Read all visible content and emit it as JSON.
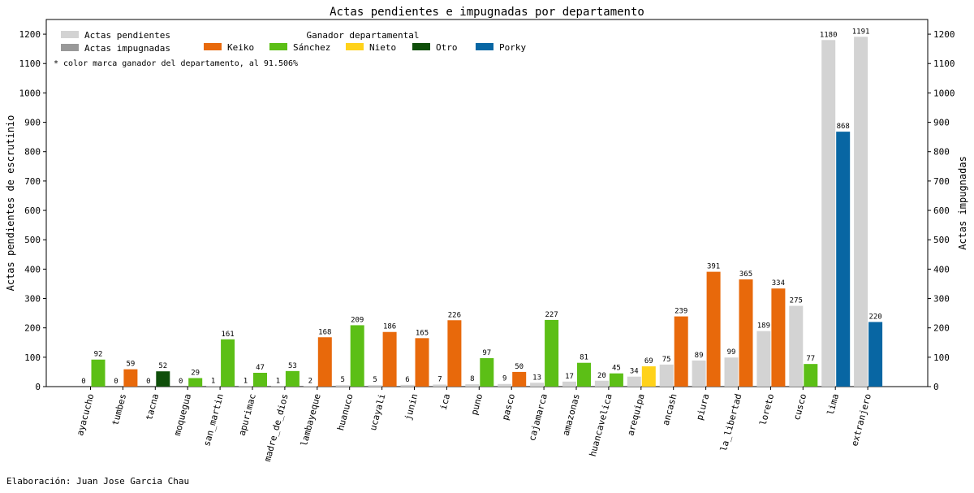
{
  "chart_data": {
    "type": "bar",
    "title": "Actas pendientes e impugnadas por departamento",
    "ylabel": "Actas pendientes de escrutinio",
    "ylabel_right": "Actas impugnadas",
    "ylim": [
      0,
      1250
    ],
    "yticks": [
      0,
      100,
      200,
      300,
      400,
      500,
      600,
      700,
      800,
      900,
      1000,
      1100,
      1200
    ],
    "categories": [
      "ayacucho",
      "tumbes",
      "tacna",
      "moquegua",
      "san_martin",
      "apurimac",
      "madre_de_dios",
      "lambayeque",
      "huanuco",
      "ucayali",
      "junin",
      "ica",
      "puno",
      "pasco",
      "cajamarca",
      "amazonas",
      "huancavelica",
      "arequipa",
      "ancash",
      "piura",
      "la_libertad",
      "loreto",
      "cusco",
      "lima",
      "extranjero"
    ],
    "series": [
      {
        "name": "Actas pendientes",
        "color": "#d3d3d3",
        "values": [
          0,
          0,
          0,
          0,
          1,
          1,
          1,
          2,
          5,
          5,
          6,
          7,
          8,
          9,
          13,
          17,
          20,
          34,
          75,
          89,
          99,
          189,
          275,
          1180,
          1191
        ]
      },
      {
        "name": "Actas impugnadas",
        "color": "#999999",
        "values": [
          92,
          59,
          52,
          29,
          161,
          47,
          53,
          168,
          209,
          186,
          165,
          226,
          97,
          50,
          227,
          81,
          45,
          69,
          239,
          391,
          365,
          334,
          77,
          868,
          220
        ],
        "winners": [
          "Sánchez",
          "Keiko",
          "Otro",
          "Sánchez",
          "Sánchez",
          "Sánchez",
          "Sánchez",
          "Keiko",
          "Sánchez",
          "Keiko",
          "Keiko",
          "Keiko",
          "Sánchez",
          "Keiko",
          "Sánchez",
          "Sánchez",
          "Sánchez",
          "Nieto",
          "Keiko",
          "Keiko",
          "Keiko",
          "Keiko",
          "Sánchez",
          "Porky",
          "Porky"
        ]
      }
    ],
    "legend_winner_title": "Ganador departamental",
    "winner_colors": [
      {
        "name": "Keiko",
        "color": "#e8690b"
      },
      {
        "name": "Sánchez",
        "color": "#5cbf16"
      },
      {
        "name": "Nieto",
        "color": "#ffd21a"
      },
      {
        "name": "Otro",
        "color": "#0f4f0a"
      },
      {
        "name": "Porky",
        "color": "#0866a3"
      }
    ],
    "note": "* color marca ganador del departamento, al 91.506%",
    "legend_position": "top-left"
  },
  "footer": "Elaboración: Juan Jose Garcia Chau"
}
